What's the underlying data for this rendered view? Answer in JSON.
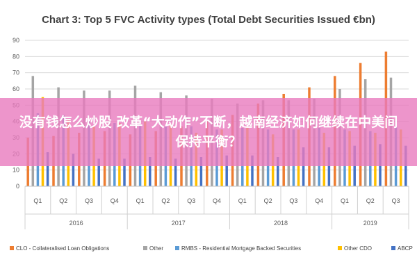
{
  "chart_data": {
    "type": "bar",
    "title": "Chart 3: Top 5 FVC Activity types (Total Debt Securities Issued €bn)",
    "categories": [
      "Q1",
      "Q2",
      "Q3",
      "Q4",
      "Q1",
      "Q2",
      "Q3",
      "Q4",
      "Q1",
      "Q2",
      "Q3",
      "Q4",
      "Q1",
      "Q2",
      "Q3"
    ],
    "years": [
      {
        "label": "2016",
        "quarters": 4
      },
      {
        "label": "2017",
        "quarters": 4
      },
      {
        "label": "2018",
        "quarters": 4
      },
      {
        "label": "2019",
        "quarters": 3
      }
    ],
    "yticks": [
      0,
      10,
      20,
      30,
      40,
      50,
      60,
      70,
      80,
      90
    ],
    "ylim": [
      0,
      90
    ],
    "grid": true,
    "legend_position": "bottom",
    "series": [
      {
        "name": "CLO - Collateralised Loan Obligations",
        "color": "#ED7D31",
        "values": [
          30,
          31,
          33,
          34,
          32,
          34,
          37,
          40,
          44,
          51,
          57,
          61,
          68,
          76,
          83
        ]
      },
      {
        "name": "Other",
        "color": "#A5A5A5",
        "values": [
          68,
          61,
          59,
          59,
          62,
          58,
          56,
          54,
          51,
          53,
          53,
          54,
          60,
          66,
          67
        ]
      },
      {
        "name": "RMBS - Residential Mortgage Backed Securities",
        "color": "#5B9BD5",
        "values": [
          45,
          44,
          41,
          39,
          38,
          37,
          37,
          35,
          36,
          35,
          35,
          36,
          35,
          34,
          37
        ]
      },
      {
        "name": "Other CDO",
        "color": "#FFC000",
        "values": [
          55,
          41,
          37,
          39,
          40,
          38,
          33,
          35,
          37,
          32,
          35,
          33,
          34,
          33,
          35
        ]
      },
      {
        "name": "ABCP",
        "color": "#4472C4",
        "values": [
          21,
          20,
          17,
          17,
          18,
          17,
          18,
          19,
          19,
          18,
          24,
          24,
          25,
          26,
          25
        ]
      }
    ]
  },
  "overlay": {
    "text": "没有钱怎么炒股 改革“大动作”不断，越南经济如何继续在中美间保持平衡？"
  }
}
